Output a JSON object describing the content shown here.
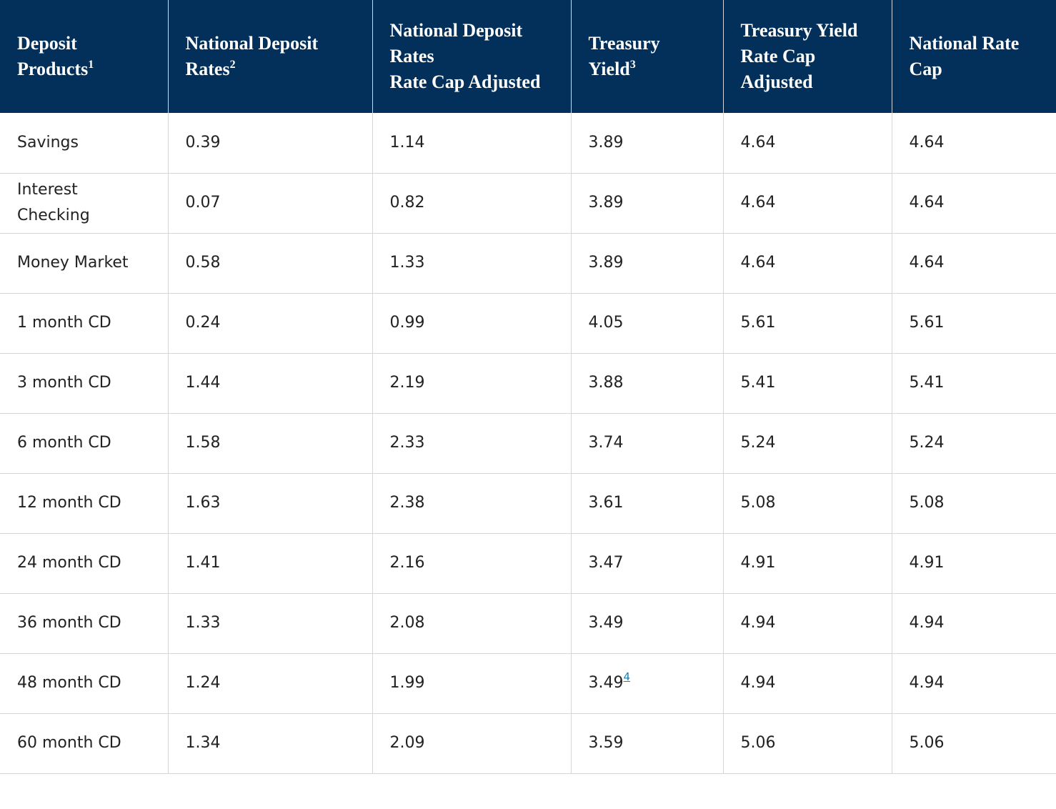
{
  "table": {
    "header": [
      {
        "lines": [
          "Deposit Products"
        ],
        "note": "1"
      },
      {
        "lines": [
          "National Deposit Rates"
        ],
        "note": "2"
      },
      {
        "lines": [
          "National Deposit Rates",
          "Rate Cap Adjusted"
        ]
      },
      {
        "lines": [
          "Treasury Yield"
        ],
        "note": "3"
      },
      {
        "lines": [
          "Treasury Yield Rate Cap Adjusted"
        ]
      },
      {
        "lines": [
          "National Rate Cap"
        ]
      }
    ],
    "rows": [
      [
        "Savings",
        "0.39",
        "1.14",
        "3.89",
        "4.64",
        "4.64"
      ],
      [
        "Interest Checking",
        "0.07",
        "0.82",
        "3.89",
        "4.64",
        "4.64"
      ],
      [
        "Money Market",
        "0.58",
        "1.33",
        "3.89",
        "4.64",
        "4.64"
      ],
      [
        "1 month CD",
        "0.24",
        "0.99",
        "4.05",
        "5.61",
        "5.61"
      ],
      [
        "3 month CD",
        "1.44",
        "2.19",
        "3.88",
        "5.41",
        "5.41"
      ],
      [
        "6 month CD",
        "1.58",
        "2.33",
        "3.74",
        "5.24",
        "5.24"
      ],
      [
        "12 month CD",
        "1.63",
        "2.38",
        "3.61",
        "5.08",
        "5.08"
      ],
      [
        "24 month CD",
        "1.41",
        "2.16",
        "3.47",
        "4.91",
        "4.91"
      ],
      [
        "36 month CD",
        "1.33",
        "2.08",
        "3.49",
        "4.94",
        "4.94"
      ],
      [
        "48 month CD",
        "1.24",
        "1.99",
        {
          "text": "3.49",
          "note": "4"
        },
        "4.94",
        "4.94"
      ],
      [
        "60 month CD",
        "1.34",
        "2.09",
        "3.59",
        "5.06",
        "5.06"
      ]
    ]
  }
}
